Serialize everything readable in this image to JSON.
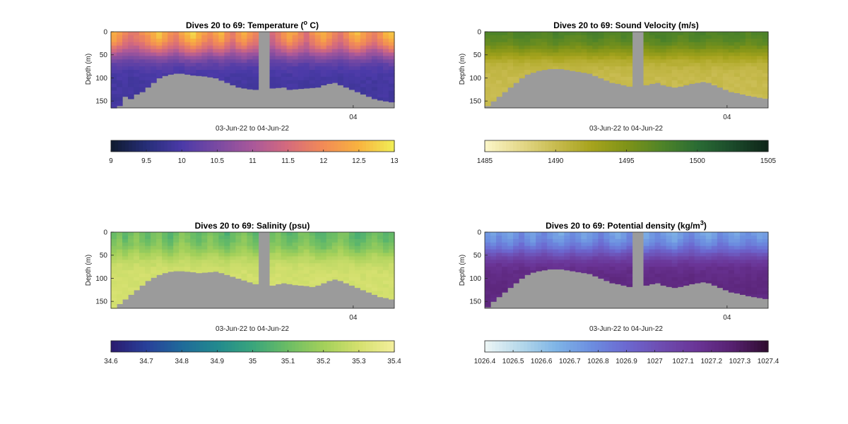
{
  "figure_background": "#ffffff",
  "land_color": "#9b9b9b",
  "chart_data": [
    {
      "type": "heatmap",
      "variable": "temperature",
      "title": "Dives 20 to 69: Temperature (",
      "title_sup": "o",
      "title_tail": " C)",
      "ylabel": "Depth (m)",
      "xlabel": "03-Jun-22 to 04-Jun-22",
      "x_tick_labels": [
        "04"
      ],
      "y_ticks": [
        0,
        50,
        100,
        150
      ],
      "ylim": [
        0,
        165
      ],
      "depth_reversed": true,
      "colorbar": {
        "min": 9,
        "max": 13,
        "ticks": [
          9,
          9.5,
          10,
          10.5,
          11,
          11.5,
          12,
          12.5,
          13
        ],
        "tick_labels": [
          "9",
          "9.5",
          "10",
          "10.5",
          "11",
          "11.5",
          "12",
          "12.5",
          "13"
        ],
        "colormap": [
          "#0f1a2e",
          "#262e78",
          "#4b3aa8",
          "#7a4aa2",
          "#a9589a",
          "#d66b7c",
          "#f28b56",
          "#f8b33f",
          "#f1ef55"
        ]
      },
      "profile_shape": "warm surface layer 11.5–13 over cool water 9.8–10.3 below ~60 m",
      "gap_dive_range": [
        26,
        27
      ],
      "bottom_depth_m": [
        165,
        160,
        140,
        145,
        135,
        130,
        120,
        110,
        100,
        95,
        92,
        90,
        90,
        92,
        94,
        95,
        96,
        98,
        100,
        105,
        110,
        115,
        120,
        122,
        124,
        125,
        124,
        123,
        122,
        121,
        120,
        125,
        124,
        123,
        122,
        121,
        120,
        115,
        112,
        110,
        115,
        120,
        125,
        130,
        135,
        140,
        145,
        148,
        150,
        152
      ],
      "surface_value": [
        12.6,
        12.3,
        12.0,
        11.8,
        11.9,
        12.1,
        12.3,
        12.6,
        12.8,
        12.5,
        12.2,
        12.0,
        12.4,
        12.7,
        12.9,
        12.6,
        12.3,
        12.1,
        12.4,
        12.6,
        12.2,
        11.9,
        12.3,
        12.5,
        12.2,
        12.0,
        12.1,
        11.8,
        11.6,
        11.9,
        12.2,
        12.5,
        12.3,
        12.0,
        11.7,
        12.1,
        12.4,
        12.6,
        12.3,
        12.0,
        11.8,
        12.1,
        12.5,
        12.7,
        12.4,
        12.1,
        11.9,
        12.2,
        12.6,
        12.8
      ],
      "deep_value": 9.9
    },
    {
      "type": "heatmap",
      "variable": "sound_velocity",
      "title": "Dives 20 to 69: Sound Velocity (m/s)",
      "ylabel": "Depth (m)",
      "xlabel": "03-Jun-22 to 04-Jun-22",
      "x_tick_labels": [
        "04"
      ],
      "y_ticks": [
        0,
        50,
        100,
        150
      ],
      "ylim": [
        0,
        165
      ],
      "depth_reversed": true,
      "colorbar": {
        "min": 1485,
        "max": 1505,
        "ticks": [
          1485,
          1490,
          1495,
          1500,
          1505
        ],
        "tick_labels": [
          "1485",
          "1490",
          "1495",
          "1500",
          "1505"
        ],
        "colormap": [
          "#fbf6c9",
          "#e5d98b",
          "#c8bb4f",
          "#a7a41d",
          "#7f9318",
          "#4f8428",
          "#2a6c34",
          "#1b4a2a",
          "#0e2418"
        ]
      },
      "profile_shape": "high velocity (~1497–1499) near surface over ~1489–1491 at depth",
      "gap_dive_range": [
        26,
        27
      ],
      "bottom_depth_m": [
        160,
        150,
        140,
        130,
        120,
        110,
        100,
        92,
        88,
        84,
        82,
        80,
        80,
        80,
        82,
        84,
        86,
        88,
        90,
        95,
        100,
        105,
        110,
        112,
        115,
        118,
        120,
        118,
        115,
        112,
        110,
        115,
        118,
        120,
        118,
        115,
        112,
        110,
        108,
        110,
        115,
        120,
        125,
        130,
        132,
        135,
        138,
        140,
        142,
        144
      ],
      "surface_value": [
        1497.5,
        1497.8,
        1498.0,
        1497.6,
        1497.3,
        1497.9,
        1498.3,
        1498.1,
        1497.7,
        1497.4,
        1497.6,
        1498.0,
        1498.4,
        1498.2,
        1497.8,
        1497.5,
        1497.3,
        1497.7,
        1498.1,
        1498.5,
        1498.2,
        1497.8,
        1497.6,
        1497.9,
        1498.3,
        1498.1,
        1497.7,
        1497.4,
        1497.6,
        1498.0,
        1498.4,
        1498.6,
        1498.3,
        1497.9,
        1497.6,
        1497.8,
        1498.2,
        1498.5,
        1498.3,
        1497.9,
        1497.6,
        1497.8,
        1498.1,
        1498.4,
        1498.2,
        1497.8,
        1497.5,
        1497.7,
        1498.0,
        1498.3
      ],
      "deep_value": 1490.0
    },
    {
      "type": "heatmap",
      "variable": "salinity",
      "title": "Dives 20 to 69: Salinity (psu)",
      "ylabel": "Depth (m)",
      "xlabel": "03-Jun-22 to 04-Jun-22",
      "x_tick_labels": [
        "04"
      ],
      "y_ticks": [
        0,
        50,
        100,
        150
      ],
      "ylim": [
        0,
        165
      ],
      "depth_reversed": true,
      "colorbar": {
        "min": 34.6,
        "max": 35.4,
        "ticks": [
          34.6,
          34.7,
          34.8,
          34.9,
          35,
          35.1,
          35.2,
          35.3,
          35.4
        ],
        "tick_labels": [
          "34.6",
          "34.7",
          "34.8",
          "34.9",
          "35",
          "35.1",
          "35.2",
          "35.3",
          "35.4"
        ],
        "colormap": [
          "#2a1a6e",
          "#28409a",
          "#1f6a9a",
          "#228a8e",
          "#39a57c",
          "#6cbd64",
          "#a3d05a",
          "#d4e06e",
          "#f4ef9c"
        ]
      },
      "profile_shape": "fresher near surface (~35.05–35.15) increasing to ~35.3 at depth",
      "gap_dive_range": [
        26,
        27
      ],
      "bottom_depth_m": [
        165,
        155,
        145,
        135,
        125,
        115,
        105,
        98,
        92,
        88,
        85,
        84,
        84,
        85,
        86,
        88,
        87,
        86,
        85,
        88,
        92,
        96,
        100,
        104,
        108,
        112,
        116,
        118,
        115,
        112,
        110,
        112,
        114,
        115,
        116,
        118,
        115,
        110,
        105,
        102,
        105,
        110,
        115,
        120,
        125,
        130,
        135,
        140,
        142,
        145
      ],
      "surface_value": [
        35.08,
        35.12,
        35.05,
        35.1,
        35.14,
        35.09,
        35.06,
        35.11,
        35.13,
        35.07,
        35.04,
        35.1,
        35.15,
        35.12,
        35.08,
        35.05,
        35.09,
        35.13,
        35.11,
        35.06,
        35.03,
        35.08,
        35.12,
        35.14,
        35.1,
        35.06,
        35.02,
        35.05,
        35.09,
        35.12,
        35.08,
        35.04,
        35.07,
        35.11,
        35.13,
        35.09,
        35.05,
        35.03,
        35.07,
        35.1,
        35.13,
        35.11,
        35.06,
        35.02,
        35.05,
        35.09,
        35.12,
        35.08,
        35.04,
        35.06
      ],
      "deep_value": 35.3
    },
    {
      "type": "heatmap",
      "variable": "potential_density",
      "title": "Dives 20 to 69: Potential density (kg/m",
      "title_sup": "3",
      "title_tail": ")",
      "ylabel": "Depth (m)",
      "xlabel": "03-Jun-22 to 04-Jun-22",
      "x_tick_labels": [
        "04"
      ],
      "y_ticks": [
        0,
        50,
        100,
        150
      ],
      "ylim": [
        0,
        165
      ],
      "depth_reversed": true,
      "colorbar": {
        "min": 1026.4,
        "max": 1027.4,
        "ticks": [
          1026.4,
          1026.5,
          1026.6,
          1026.7,
          1026.8,
          1026.9,
          1027,
          1027.1,
          1027.2,
          1027.3,
          1027.4
        ],
        "tick_labels": [
          "1026.4",
          "1026.5",
          "1026.6",
          "1026.7",
          "1026.8",
          "1026.9",
          "1027",
          "1027.1",
          "1027.2",
          "1027.3",
          "1027.4"
        ],
        "colormap": [
          "#eef6f6",
          "#b6d9ea",
          "#7fb5e6",
          "#6c8ee0",
          "#6c68d0",
          "#6e4cb0",
          "#6a3496",
          "#56206f",
          "#2e0c2e"
        ]
      },
      "profile_shape": "light surface water (~1026.6–1026.8) over dense deep water (~1027.2)",
      "gap_dive_range": [
        26,
        27
      ],
      "bottom_depth_m": [
        162,
        150,
        140,
        130,
        120,
        110,
        100,
        92,
        87,
        84,
        82,
        80,
        80,
        80,
        82,
        84,
        86,
        88,
        90,
        95,
        100,
        105,
        110,
        112,
        115,
        118,
        120,
        118,
        115,
        112,
        110,
        115,
        118,
        120,
        118,
        115,
        112,
        110,
        108,
        110,
        115,
        120,
        125,
        130,
        132,
        135,
        138,
        140,
        142,
        144
      ],
      "surface_value": [
        1026.72,
        1026.68,
        1026.75,
        1026.7,
        1026.66,
        1026.73,
        1026.78,
        1026.71,
        1026.67,
        1026.74,
        1026.79,
        1026.73,
        1026.68,
        1026.65,
        1026.71,
        1026.76,
        1026.72,
        1026.67,
        1026.7,
        1026.75,
        1026.8,
        1026.74,
        1026.69,
        1026.66,
        1026.71,
        1026.77,
        1026.73,
        1026.68,
        1026.64,
        1026.7,
        1026.75,
        1026.72,
        1026.67,
        1026.63,
        1026.69,
        1026.74,
        1026.78,
        1026.72,
        1026.68,
        1026.65,
        1026.7,
        1026.76,
        1026.73,
        1026.69,
        1026.66,
        1026.71,
        1026.75,
        1026.72,
        1026.68,
        1026.7
      ],
      "deep_value": 1027.22
    }
  ]
}
